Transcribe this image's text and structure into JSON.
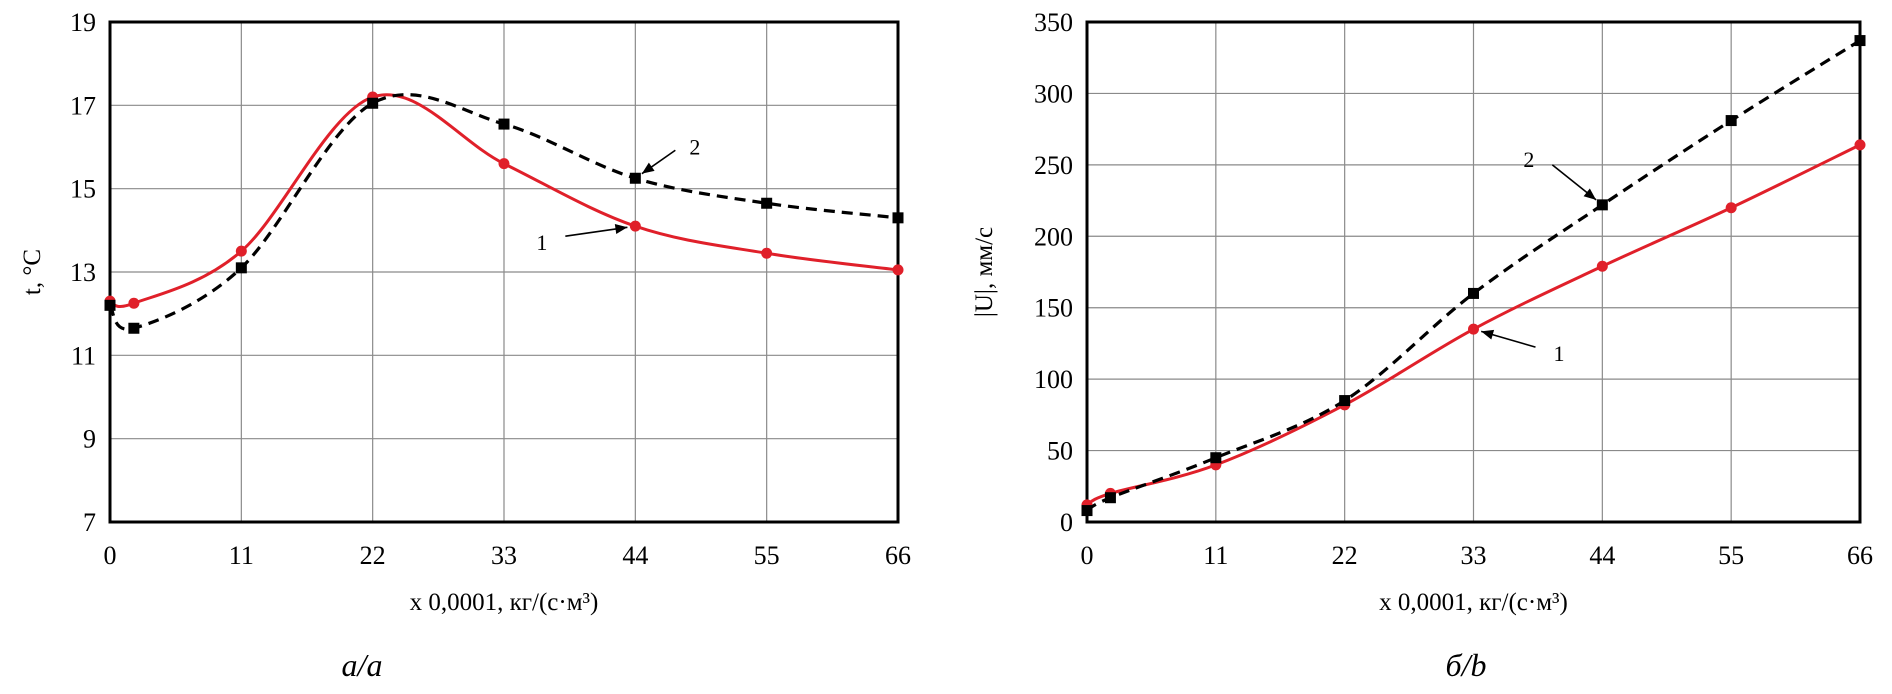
{
  "chart_data": [
    {
      "type": "line",
      "caption": "a/a",
      "xlabel": "x 0,0001,  кг/(с·м³)",
      "ylabel": "t, °C",
      "xlim": [
        0,
        66
      ],
      "ylim": [
        7,
        19
      ],
      "xticks": [
        0,
        11,
        22,
        33,
        44,
        55,
        66
      ],
      "yticks": [
        7,
        9,
        11,
        13,
        15,
        17,
        19
      ],
      "grid": true,
      "series": [
        {
          "name": "1",
          "color": "#e0202a",
          "style": "solid",
          "marker": "circle",
          "x": [
            0,
            2,
            11,
            22,
            33,
            44,
            55,
            66
          ],
          "y": [
            12.3,
            12.25,
            13.5,
            17.2,
            15.6,
            14.1,
            13.45,
            13.05
          ]
        },
        {
          "name": "2",
          "color": "#000000",
          "style": "dashed",
          "marker": "square",
          "x": [
            0,
            2,
            11,
            22,
            33,
            44,
            55,
            66
          ],
          "y": [
            12.2,
            11.65,
            13.1,
            17.05,
            16.55,
            15.25,
            14.65,
            14.3
          ]
        }
      ],
      "annotations": [
        {
          "text": "1",
          "series": "1",
          "point_x": 44
        },
        {
          "text": "2",
          "series": "2",
          "point_x": 44
        }
      ]
    },
    {
      "type": "line",
      "caption": "б/b",
      "xlabel": "x 0,0001,  кг/(с·м³)",
      "ylabel": "|U|, мм/с",
      "xlim": [
        0,
        66
      ],
      "ylim": [
        0,
        350
      ],
      "xticks": [
        0,
        11,
        22,
        33,
        44,
        55,
        66
      ],
      "yticks": [
        0,
        50,
        100,
        150,
        200,
        250,
        300,
        350
      ],
      "grid": true,
      "series": [
        {
          "name": "1",
          "color": "#e0202a",
          "style": "solid",
          "marker": "circle",
          "x": [
            0,
            2,
            11,
            22,
            33,
            44,
            55,
            66
          ],
          "y": [
            12,
            20,
            40,
            82,
            135,
            179,
            220,
            264
          ]
        },
        {
          "name": "2",
          "color": "#000000",
          "style": "dashed",
          "marker": "square",
          "x": [
            0,
            2,
            11,
            22,
            33,
            44,
            55,
            66
          ],
          "y": [
            8,
            17,
            45,
            85,
            160,
            222,
            281,
            337
          ]
        }
      ],
      "annotations": [
        {
          "text": "1",
          "series": "1",
          "point_x": 33
        },
        {
          "text": "2",
          "series": "2",
          "point_x": 44
        }
      ]
    }
  ]
}
